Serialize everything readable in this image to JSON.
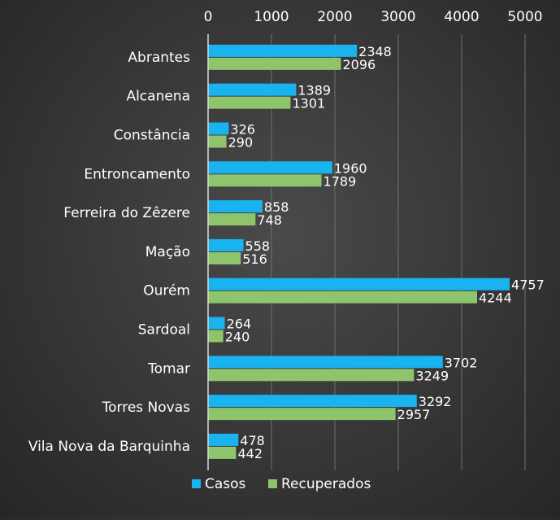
{
  "chart_data": {
    "type": "bar",
    "orientation": "horizontal",
    "title": "",
    "xlabel": "",
    "ylabel": "",
    "xlim": [
      0,
      5000
    ],
    "x_ticks": [
      "0",
      "1000",
      "2000",
      "3000",
      "4000",
      "5000"
    ],
    "grid": true,
    "legend_position": "bottom",
    "categories": [
      "Abrantes",
      "Alcanena",
      "Constância",
      "Entroncamento",
      "Ferreira do Zêzere",
      "Mação",
      "Ourém",
      "Sardoal",
      "Tomar",
      "Torres Novas",
      "Vila Nova da Barquinha"
    ],
    "series": [
      {
        "name": "Casos",
        "color": "#19b3ef",
        "values": [
          2348,
          1389,
          326,
          1960,
          858,
          558,
          4757,
          264,
          3702,
          3292,
          478
        ]
      },
      {
        "name": "Recuperados",
        "color": "#8dc46c",
        "values": [
          2096,
          1301,
          290,
          1789,
          748,
          516,
          4244,
          240,
          3249,
          2957,
          442
        ]
      }
    ]
  }
}
